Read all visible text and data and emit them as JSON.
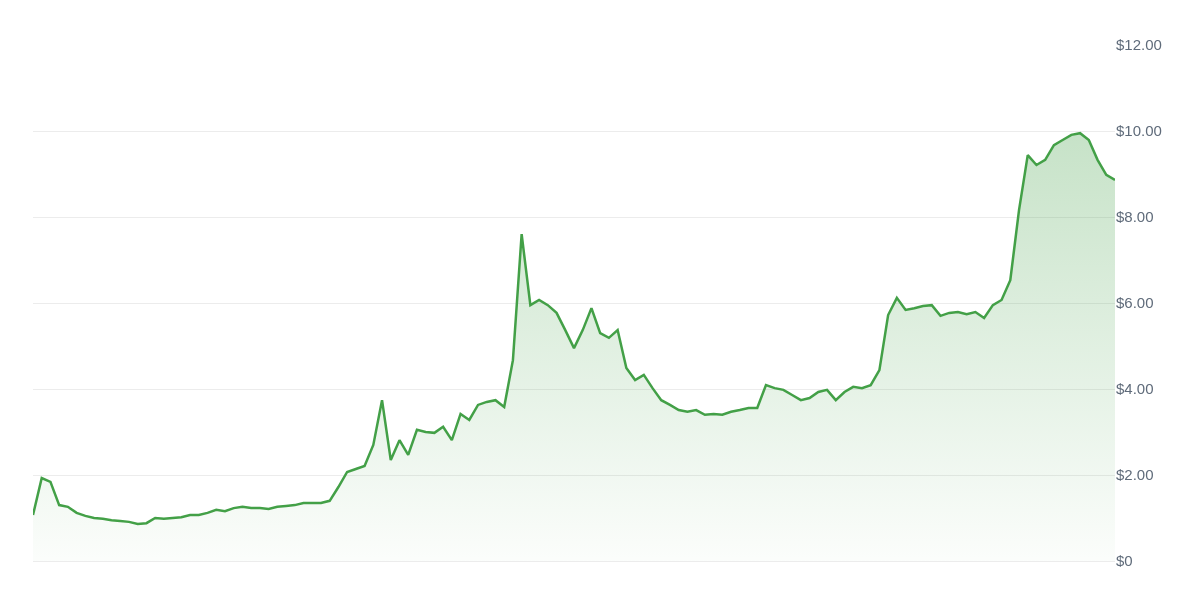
{
  "chart_data": {
    "type": "area",
    "categories": [
      null,
      null,
      null,
      null,
      null,
      null,
      null,
      null,
      null,
      null,
      null,
      null,
      null,
      null,
      null,
      null,
      null,
      null,
      null,
      null,
      null,
      null,
      null,
      null,
      null,
      null,
      null,
      null,
      null,
      null,
      null,
      null,
      null,
      null,
      null,
      null,
      null,
      null,
      null,
      null,
      null,
      null,
      null,
      null,
      null,
      null,
      null,
      null,
      null,
      null,
      null,
      null,
      null,
      null,
      null,
      null,
      null,
      null,
      null,
      null,
      null,
      null,
      null,
      null,
      null,
      null,
      null,
      null,
      null,
      null,
      null,
      null,
      null,
      null,
      null,
      null,
      null,
      null,
      null,
      null,
      null,
      null,
      null,
      null,
      null,
      null,
      null,
      null,
      null,
      null,
      null,
      null,
      null,
      null,
      null,
      null,
      null,
      null,
      null,
      null,
      null,
      null,
      null,
      null,
      null,
      null,
      null,
      null,
      null,
      null,
      null,
      null,
      null,
      null,
      null,
      null,
      null,
      null,
      null,
      null,
      null,
      null,
      null,
      null,
      null
    ],
    "series": [
      {
        "color": "#43a047",
        "values": [
          1.07,
          1.93,
          1.84,
          1.3,
          1.26,
          1.12,
          1.05,
          1.0,
          0.98,
          0.95,
          0.93,
          0.91,
          0.86,
          0.88,
          1.0,
          0.98,
          1.0,
          1.02,
          1.07,
          1.07,
          1.12,
          1.19,
          1.16,
          1.23,
          1.26,
          1.23,
          1.23,
          1.21,
          1.26,
          1.28,
          1.3,
          1.35,
          1.35,
          1.35,
          1.4,
          1.72,
          2.07,
          2.14,
          2.21,
          2.7,
          3.74,
          2.35,
          2.81,
          2.47,
          3.05,
          3.0,
          2.98,
          3.12,
          2.81,
          3.42,
          3.28,
          3.63,
          3.7,
          3.74,
          3.58,
          4.67,
          7.6,
          5.95,
          6.07,
          5.95,
          5.77,
          5.37,
          4.95,
          5.37,
          5.88,
          5.3,
          5.19,
          5.37,
          4.49,
          4.21,
          4.33,
          4.02,
          3.74,
          3.63,
          3.51,
          3.47,
          3.51,
          3.4,
          3.42,
          3.4,
          3.47,
          3.51,
          3.56,
          3.56,
          4.09,
          4.02,
          3.98,
          3.86,
          3.74,
          3.79,
          3.93,
          3.98,
          3.74,
          3.93,
          4.05,
          4.02,
          4.09,
          4.44,
          5.72,
          6.12,
          5.84,
          5.88,
          5.93,
          5.95,
          5.7,
          5.77,
          5.79,
          5.74,
          5.79,
          5.65,
          5.95,
          6.07,
          6.53,
          8.16,
          9.44,
          9.21,
          9.33,
          9.67,
          9.79,
          9.91,
          9.95,
          9.79,
          9.33,
          8.98,
          8.86
        ]
      }
    ],
    "ylim": [
      0,
      12
    ],
    "yticks": [
      {
        "value": 0,
        "label": "$0"
      },
      {
        "value": 2,
        "label": "$2.00"
      },
      {
        "value": 4,
        "label": "$4.00"
      },
      {
        "value": 6,
        "label": "$6.00"
      },
      {
        "value": 8,
        "label": "$8.00"
      },
      {
        "value": 10,
        "label": "$10.00"
      },
      {
        "value": 12,
        "label": "$12.00"
      }
    ],
    "grid": "y",
    "tick_labels": "y"
  }
}
